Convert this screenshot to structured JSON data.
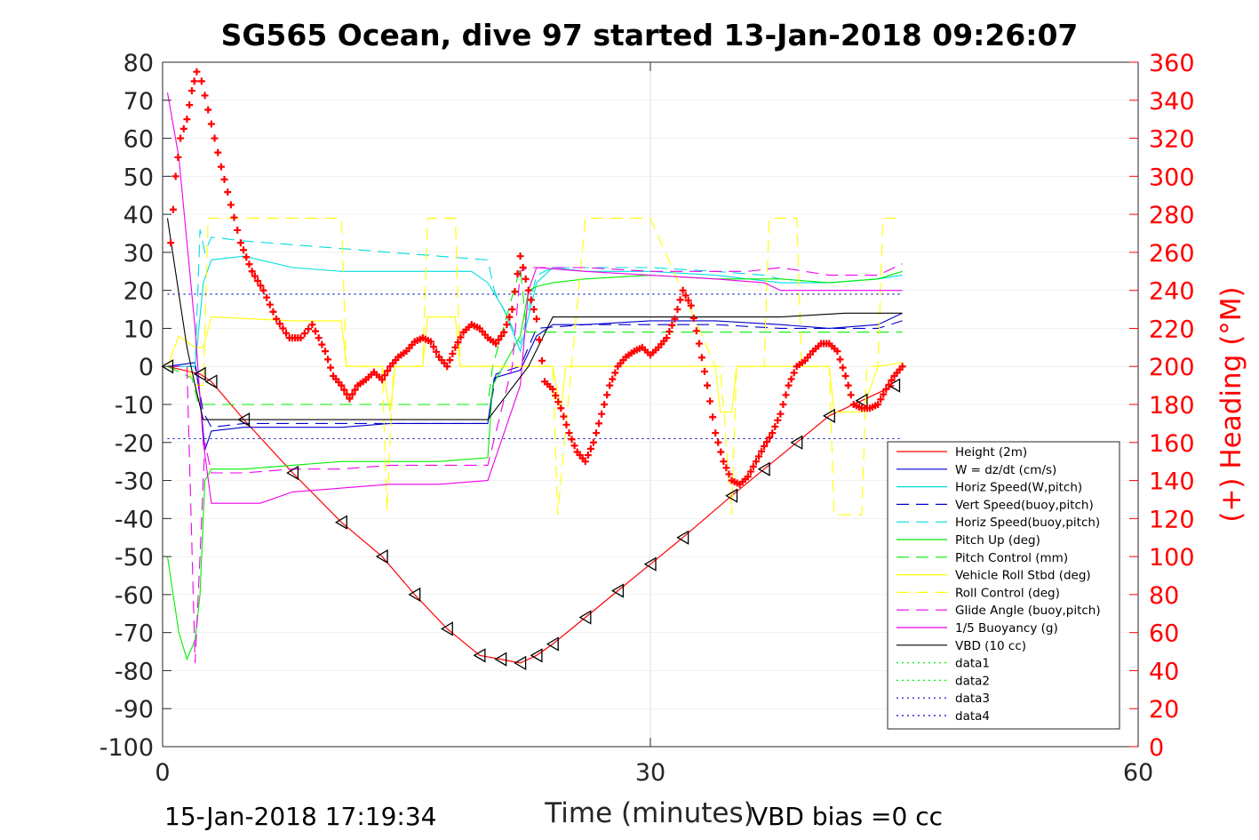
{
  "chart_data": {
    "type": "line",
    "title": "SG565 Ocean, dive 97 started 13-Jan-2018 09:26:07",
    "xlabel": "Time (minutes)",
    "ylabel_right": "(+) Heading (°M)",
    "xlim": [
      0,
      60
    ],
    "ylim": [
      -100,
      80
    ],
    "ylim_right": [
      0,
      360
    ],
    "x_ticks": [
      "0",
      "30",
      "60"
    ],
    "y_ticks": [
      "80",
      "70",
      "60",
      "50",
      "40",
      "30",
      "20",
      "10",
      "0",
      "-10",
      "-20",
      "-30",
      "-40",
      "-50",
      "-60",
      "-70",
      "-80",
      "-90",
      "-100"
    ],
    "y_right_ticks": [
      "360",
      "340",
      "320",
      "300",
      "280",
      "260",
      "240",
      "220",
      "200",
      "180",
      "160",
      "140",
      "120",
      "100",
      "80",
      "60",
      "40",
      "20",
      "0"
    ],
    "grid": "x-major only",
    "legend_position": "bottom-right",
    "footer_left": "15-Jan-2018 17:19:34",
    "footer_right": "VBD bias =0 cc",
    "colors": {
      "heading": "#ff0000",
      "axis": "#262626",
      "grid": "#dedede"
    },
    "series": [
      {
        "name": "Height (2m)",
        "color": "#ff0000",
        "dash": "solid",
        "marker": "triangle-left",
        "x": [
          0.3,
          2.3,
          3.0,
          5.0,
          8.0,
          11.0,
          13.5,
          15.5,
          17.5,
          19.5,
          20.8,
          22.0,
          23.0,
          24.0,
          26.0,
          28.0,
          30.0,
          32.0,
          35.0,
          37.0,
          39.0,
          41.0,
          43.0,
          45.0
        ],
        "y": [
          0,
          -2,
          -4,
          -14,
          -28,
          -41,
          -50,
          -60,
          -69,
          -76,
          -77,
          -78,
          -76,
          -73,
          -66,
          -59,
          -52,
          -45,
          -34,
          -27,
          -20,
          -13,
          -9,
          -5
        ]
      },
      {
        "name": "W = dz/dt (cm/s)",
        "color": "#0000cc",
        "dash": "solid",
        "x": [
          0.3,
          2.0,
          2.3,
          2.6,
          3.0,
          5.0,
          8.0,
          11.0,
          14.0,
          17.0,
          20.0,
          20.4,
          22.0,
          23.0,
          24.0,
          26.0,
          30.0,
          34.0,
          38.0,
          41.0,
          44.0,
          45.5
        ],
        "y": [
          0,
          1,
          -8,
          -22,
          -17,
          -16,
          -16,
          -16,
          -15,
          -15,
          -15,
          -3,
          -1,
          8,
          11,
          11,
          12,
          12,
          11,
          10,
          11,
          14
        ]
      },
      {
        "name": "Horiz Speed(W,pitch)",
        "color": "#00dddd",
        "dash": "solid",
        "x": [
          0.3,
          2.0,
          2.5,
          3.0,
          5.0,
          8.0,
          11.0,
          14.0,
          17.0,
          19.0,
          20.0,
          21.0,
          22.0,
          23.0,
          24.0,
          26.0,
          30.0,
          34.0,
          38.0,
          41.0,
          44.0,
          45.5
        ],
        "y": [
          0,
          0,
          22,
          28,
          29,
          26,
          25,
          25,
          25,
          25,
          22,
          15,
          4,
          22,
          26,
          25,
          25,
          24,
          22,
          22,
          23,
          24
        ]
      },
      {
        "name": "Vert Speed(buoy,pitch)",
        "color": "#0000cc",
        "dash": "dash",
        "x": [
          0.3,
          2.0,
          2.5,
          3.0,
          5.0,
          8.0,
          11.0,
          14.0,
          17.0,
          20.0,
          20.5,
          22.0,
          23.0,
          26.0,
          30.0,
          34.0,
          38.0,
          41.0,
          44.0,
          45.5
        ],
        "y": [
          0,
          0,
          -12,
          -16,
          -15,
          -15,
          -15,
          -15,
          -15,
          -15,
          -2,
          0,
          10,
          11,
          11,
          11,
          10,
          10,
          10,
          12
        ]
      },
      {
        "name": "Horiz Speed(buoy,pitch)",
        "color": "#00dddd",
        "dash": "dash",
        "x": [
          0.3,
          2.0,
          2.3,
          2.6,
          3.0,
          5.0,
          8.0,
          11.0,
          14.0,
          17.0,
          20.0,
          20.4,
          22.0,
          23.0,
          24.0,
          26.0,
          30.0,
          34.0,
          37.0,
          38.0,
          41.0,
          44.0,
          45.5
        ],
        "y": [
          0,
          0,
          36,
          30,
          34,
          33,
          32,
          31,
          30,
          29,
          28,
          20,
          6,
          24,
          26,
          26,
          26,
          25,
          24,
          23,
          22,
          23,
          25
        ]
      },
      {
        "name": "Pitch Up (deg)",
        "color": "#00ee00",
        "dash": "solid",
        "x": [
          0.3,
          1.0,
          1.5,
          2.0,
          2.3,
          2.6,
          3.0,
          5.0,
          8.0,
          11.0,
          14.0,
          17.0,
          20.0,
          20.3,
          22.0,
          22.5,
          23.0,
          24.0,
          26.0,
          30.0,
          34.0,
          38.0,
          41.0,
          44.0,
          45.5
        ],
        "y": [
          -50,
          -70,
          -77,
          -72,
          -60,
          -30,
          -27,
          -27,
          -26,
          -25,
          -25,
          -25,
          -24,
          -5,
          8,
          20,
          21,
          22,
          23,
          24,
          23,
          23,
          22,
          23,
          25
        ]
      },
      {
        "name": "Pitch Control (mm)",
        "color": "#00ee00",
        "dash": "dash",
        "x": [
          0.3,
          1.8,
          2.2,
          2.5,
          3.0,
          8.0,
          14.0,
          20.0,
          20.3,
          22.0,
          22.4,
          30.0,
          38.0,
          45.5
        ],
        "y": [
          0,
          -3,
          -10,
          -10,
          -10,
          -10,
          -10,
          -10,
          0,
          26,
          9,
          9,
          9,
          9
        ]
      },
      {
        "name": "Vehicle Roll Stbd (deg)",
        "color": "#ffff00",
        "dash": "solid",
        "x": [
          0.3,
          1.0,
          2.0,
          2.5,
          3.0,
          8.0,
          11.0,
          11.3,
          13.5,
          14.0,
          14.3,
          16.0,
          16.3,
          18.0,
          18.3,
          20.0,
          22.0,
          24.0,
          24.5,
          24.8,
          26.0,
          30.0,
          34.0,
          34.3,
          35.0,
          35.3,
          38.0,
          41.0,
          41.3,
          43.0,
          44.0,
          45.5
        ],
        "y": [
          0,
          8,
          5,
          5,
          13,
          12,
          12,
          0,
          0,
          -12,
          0,
          0,
          13,
          13,
          0,
          0,
          0,
          0,
          -12,
          0,
          0,
          0,
          0,
          -12,
          -12,
          0,
          0,
          0,
          -12,
          -12,
          0,
          1
        ]
      },
      {
        "name": "Roll Control (deg)",
        "color": "#ffff00",
        "dash": "dash",
        "x": [
          0.3,
          1.5,
          2.0,
          2.5,
          2.8,
          3.0,
          8.0,
          11.0,
          11.3,
          13.5,
          13.8,
          14.2,
          16.0,
          16.3,
          18.0,
          18.3,
          20.0,
          24.0,
          24.3,
          26.0,
          30.0,
          34.0,
          34.3,
          35.0,
          35.3,
          37.0,
          37.3,
          39.0,
          39.3,
          41.0,
          41.3,
          43.0,
          43.3,
          44.0,
          44.3,
          45.5
        ],
        "y": [
          0,
          0,
          -5,
          -5,
          39,
          39,
          39,
          39,
          0,
          0,
          -38,
          0,
          0,
          39,
          39,
          0,
          0,
          0,
          -39,
          39,
          39,
          0,
          0,
          -39,
          0,
          0,
          39,
          39,
          0,
          0,
          -39,
          -39,
          0,
          0,
          39,
          39
        ]
      },
      {
        "name": "Glide Angle (buoy,pitch)",
        "color": "#ee00ee",
        "dash": "dash",
        "x": [
          0.3,
          1.5,
          2.0,
          2.3,
          2.6,
          3.0,
          5.0,
          8.0,
          11.0,
          14.0,
          17.0,
          20.0,
          21.5,
          22.0,
          22.5,
          23.0,
          26.0,
          30.0,
          34.0,
          36.0,
          38.0,
          41.0,
          44.0,
          45.5
        ],
        "y": [
          0,
          0,
          -78,
          -50,
          -20,
          -28,
          -28,
          -27,
          -27,
          -26,
          -26,
          -26,
          0,
          25,
          26,
          26,
          26,
          25,
          25,
          25,
          26,
          24,
          24,
          27
        ]
      },
      {
        "name": "1/5 Buoyancy (g)",
        "color": "#ee00ee",
        "dash": "solid",
        "x": [
          0.3,
          1.0,
          2.0,
          2.5,
          3.0,
          6.0,
          8.0,
          11.0,
          14.0,
          17.0,
          20.0,
          22.0,
          22.5,
          23.0,
          26.0,
          30.0,
          34.0,
          37.0,
          38.0,
          41.0,
          45.5
        ],
        "y": [
          72,
          55,
          10,
          -20,
          -36,
          -36,
          -33,
          -32,
          -31,
          -31,
          -30,
          -5,
          20,
          26,
          25,
          24,
          23,
          22,
          20,
          20,
          20
        ]
      },
      {
        "name": "VBD (10 cc)",
        "color": "#000000",
        "dash": "solid",
        "x": [
          0.3,
          1.5,
          2.0,
          2.5,
          3.0,
          8.0,
          14.0,
          19.0,
          20.0,
          22.5,
          24.0,
          26.0,
          30.0,
          34.0,
          38.0,
          42.0,
          45.5
        ],
        "y": [
          39,
          5,
          -5,
          -14,
          -14,
          -14,
          -14,
          -14,
          -14,
          0,
          13,
          13,
          13,
          13,
          13,
          14,
          14
        ]
      },
      {
        "name": "data1",
        "color": "#00ee00",
        "dash": "dot",
        "x": [
          0.3,
          45.5
        ],
        "y": [
          19,
          19
        ]
      },
      {
        "name": "data2",
        "color": "#00ee00",
        "dash": "dot",
        "x": [
          0.3,
          45.5
        ],
        "y": [
          -19,
          -19
        ]
      },
      {
        "name": "data3",
        "color": "#0000cc",
        "dash": "dot",
        "x": [
          0.3,
          45.5
        ],
        "y": [
          19,
          19
        ]
      },
      {
        "name": "data4",
        "color": "#0000cc",
        "dash": "dot",
        "x": [
          0.3,
          45.5
        ],
        "y": [
          -19,
          -19
        ]
      }
    ],
    "heading": {
      "marker": "plus",
      "color": "#ff0000",
      "x": [
        0.5,
        0.8,
        1.1,
        1.5,
        1.8,
        2.1,
        2.4,
        2.8,
        3.2,
        3.6,
        4.2,
        4.8,
        5.5,
        6.2,
        7.0,
        7.8,
        8.5,
        9.2,
        10.0,
        10.5,
        11.0,
        11.5,
        12.0,
        12.5,
        13.0,
        13.5,
        14.0,
        14.5,
        15.0,
        15.5,
        16.0,
        16.5,
        17.0,
        17.5,
        18.0,
        18.5,
        19.0,
        19.5,
        20.0,
        20.5,
        21.0,
        21.5,
        22.0,
        22.5,
        23.0,
        23.5,
        24.0,
        24.5,
        25.0,
        25.5,
        26.0,
        26.5,
        27.0,
        27.5,
        28.0,
        28.5,
        29.0,
        29.5,
        30.0,
        30.5,
        31.0,
        31.5,
        32.0,
        32.5,
        33.0,
        33.5,
        34.0,
        34.5,
        35.0,
        35.5,
        36.0,
        36.5,
        37.0,
        37.5,
        38.0,
        38.5,
        39.0,
        39.5,
        40.0,
        40.5,
        41.0,
        41.5,
        42.0,
        42.5,
        43.0,
        43.5,
        44.0,
        44.5,
        45.0,
        45.5
      ],
      "y": [
        265,
        300,
        320,
        330,
        345,
        355,
        350,
        335,
        320,
        305,
        285,
        265,
        250,
        240,
        225,
        215,
        215,
        222,
        208,
        195,
        190,
        183,
        190,
        193,
        197,
        193,
        200,
        205,
        208,
        213,
        215,
        213,
        205,
        200,
        210,
        218,
        222,
        220,
        215,
        212,
        218,
        230,
        258,
        240,
        225,
        192,
        188,
        178,
        165,
        155,
        150,
        160,
        175,
        190,
        200,
        205,
        208,
        210,
        206,
        210,
        215,
        225,
        240,
        232,
        212,
        190,
        165,
        150,
        140,
        138,
        142,
        150,
        158,
        165,
        175,
        190,
        200,
        203,
        208,
        212,
        212,
        208,
        195,
        180,
        178,
        178,
        180,
        188,
        195,
        200
      ]
    }
  }
}
